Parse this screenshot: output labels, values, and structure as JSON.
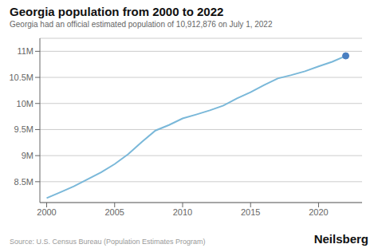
{
  "chart_data": {
    "type": "line",
    "title": "Georgia population from 2000 to 2022",
    "subtitle": "Georgia had an official estimated population of 10,912,876 on July 1, 2022",
    "annotations": [
      "Source: U.S. Census Bureau (Population Estimates Program)",
      "Neilsberg"
    ],
    "x": [
      2000,
      2001,
      2002,
      2003,
      2004,
      2005,
      2006,
      2007,
      2008,
      2009,
      2010,
      2011,
      2012,
      2013,
      2014,
      2015,
      2016,
      2017,
      2018,
      2019,
      2020,
      2021,
      2022
    ],
    "series": [
      {
        "type": "line",
        "color": "#7ab8d9",
        "values": [
          8186453,
          8297958,
          8410234,
          8544166,
          8680634,
          8837370,
          9027575,
          9262726,
          9480418,
          9586695,
          9712566,
          9787843,
          9867842,
          9958923,
          10097343,
          10214860,
          10352860,
          10480164,
          10545138,
          10617423,
          10711908,
          10799566,
          10912876
        ]
      },
      {
        "type": "scatter",
        "color": "#4a7fc1",
        "values": [
          null,
          null,
          null,
          null,
          null,
          null,
          null,
          null,
          null,
          null,
          null,
          null,
          null,
          null,
          null,
          null,
          null,
          null,
          null,
          null,
          null,
          null,
          10912876
        ]
      }
    ],
    "xlim": [
      1999.5,
      2023.2
    ],
    "xticks": [
      2000,
      2005,
      2010,
      2015,
      2020
    ],
    "ylim": [
      8100000,
      11250000
    ],
    "yticks": [
      {
        "value": 8500000,
        "label": "8.5M"
      },
      {
        "value": 9000000,
        "label": "9M"
      },
      {
        "value": 9500000,
        "label": "9.5M"
      },
      {
        "value": 10000000,
        "label": "10M"
      },
      {
        "value": 10500000,
        "label": "10.5M"
      },
      {
        "value": 11000000,
        "label": "11M"
      }
    ],
    "grid": true
  }
}
